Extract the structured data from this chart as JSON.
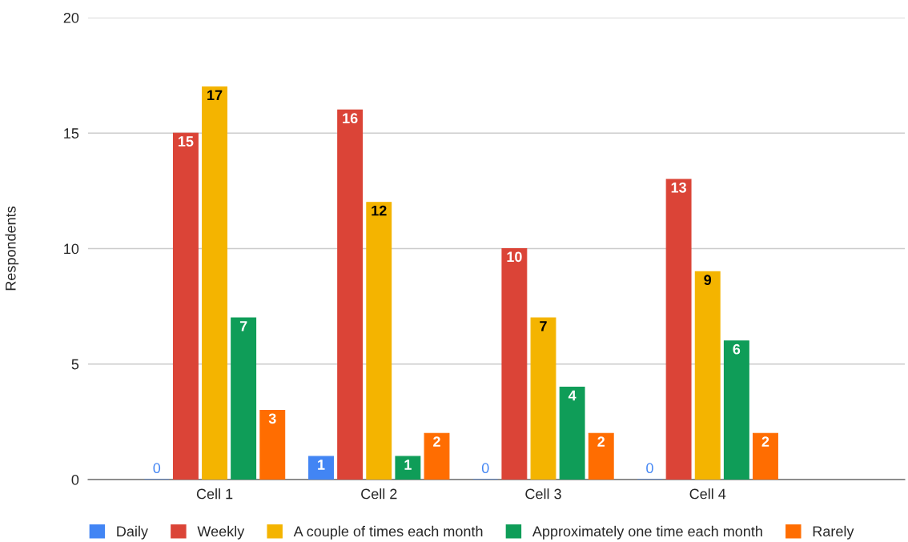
{
  "chart_data": {
    "type": "bar",
    "ylabel": "Respondents",
    "categories": [
      "Cell 1",
      "Cell 2",
      "Cell 3",
      "Cell 4"
    ],
    "series": [
      {
        "name": "Daily",
        "color": "#4285f4",
        "values": [
          0,
          1,
          0,
          0
        ]
      },
      {
        "name": "Weekly",
        "color": "#db4437",
        "values": [
          15,
          16,
          10,
          13
        ]
      },
      {
        "name": "A couple of times each month",
        "color": "#f4b400",
        "values": [
          17,
          12,
          7,
          9
        ]
      },
      {
        "name": "Approximately one time each month",
        "color": "#0f9d58",
        "values": [
          7,
          1,
          4,
          6
        ]
      },
      {
        "name": "Rarely",
        "color": "#ff6d01",
        "values": [
          3,
          2,
          2,
          2
        ]
      }
    ],
    "ylim": [
      0,
      20
    ],
    "yticks": [
      0,
      5,
      10,
      15,
      20
    ],
    "grid": "y",
    "legend": "bottom",
    "data_labels": true
  }
}
